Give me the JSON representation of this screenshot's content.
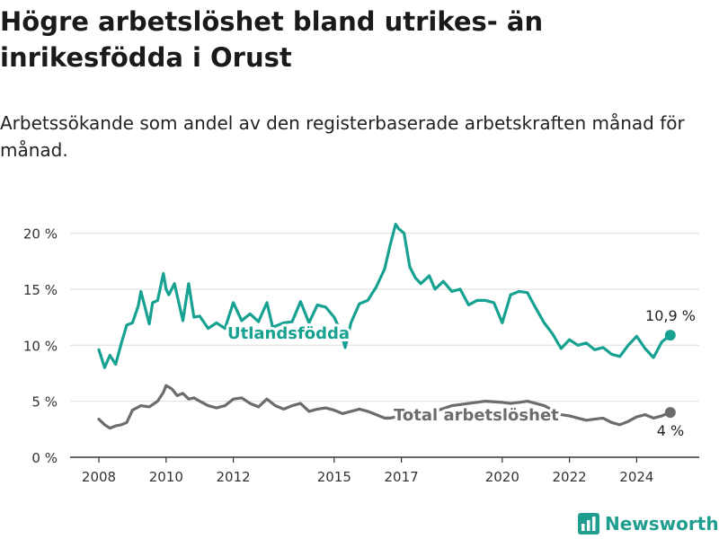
{
  "title": "Högre arbetslöshet bland utrikes- än inrikesfödda i Orust",
  "subtitle": "Arbetssökande som andel av den registerbaserade arbetskraften månad för månad.",
  "brand": "Newsworthy",
  "colors": {
    "utlandsfodda": "#16a190",
    "total": "#6c6c6c",
    "grid": "#dddddd",
    "axis": "#333333",
    "brand": "#1f9e8f"
  },
  "chart_data": {
    "type": "line",
    "y_ticks": [
      "0 %",
      "5 %",
      "10 %",
      "15 %",
      "20 %"
    ],
    "x_ticks": [
      "2008",
      "2010",
      "2012",
      "2015",
      "2017",
      "2020",
      "2022",
      "2024"
    ],
    "x_tick_values": [
      2008,
      2010,
      2012,
      2015,
      2017,
      2020,
      2022,
      2024
    ],
    "ylim": [
      0,
      21
    ],
    "grid": true,
    "series": [
      {
        "name": "Utlandsfödda",
        "end_label": "10,9 %",
        "x": [
          2008.0,
          2008.17,
          2008.33,
          2008.5,
          2008.67,
          2008.83,
          2009.0,
          2009.17,
          2009.25,
          2009.5,
          2009.6,
          2009.75,
          2009.92,
          2010.0,
          2010.08,
          2010.25,
          2010.5,
          2010.67,
          2010.83,
          2011.0,
          2011.25,
          2011.5,
          2011.75,
          2012.0,
          2012.25,
          2012.5,
          2012.75,
          2013.0,
          2013.17,
          2013.5,
          2013.75,
          2014.0,
          2014.25,
          2014.5,
          2014.75,
          2015.0,
          2015.17,
          2015.33,
          2015.5,
          2015.75,
          2016.0,
          2016.25,
          2016.5,
          2016.67,
          2016.83,
          2016.92,
          2017.08,
          2017.25,
          2017.42,
          2017.58,
          2017.83,
          2018.0,
          2018.25,
          2018.5,
          2018.75,
          2019.0,
          2019.25,
          2019.5,
          2019.75,
          2020.0,
          2020.25,
          2020.5,
          2020.75,
          2021.0,
          2021.25,
          2021.5,
          2021.75,
          2022.0,
          2022.25,
          2022.5,
          2022.75,
          2023.0,
          2023.25,
          2023.5,
          2023.75,
          2024.0,
          2024.25,
          2024.5,
          2024.75,
          2025.0
        ],
        "y": [
          9.6,
          8.0,
          9.1,
          8.3,
          10.2,
          11.8,
          12.0,
          13.5,
          14.8,
          11.9,
          13.8,
          14.0,
          16.4,
          15.0,
          14.5,
          15.5,
          12.2,
          15.5,
          12.5,
          12.6,
          11.5,
          12.0,
          11.5,
          13.8,
          12.2,
          12.8,
          12.1,
          13.8,
          11.6,
          12.0,
          12.1,
          13.9,
          12.0,
          13.6,
          13.4,
          12.5,
          11.4,
          9.8,
          12.0,
          13.7,
          14.0,
          15.2,
          16.8,
          19.0,
          20.8,
          20.4,
          20.0,
          17.0,
          16.0,
          15.5,
          16.2,
          15.0,
          15.7,
          14.8,
          15.0,
          13.6,
          14.0,
          14.0,
          13.8,
          12.0,
          14.5,
          14.8,
          14.7,
          13.3,
          12.0,
          11.0,
          9.7,
          10.5,
          10.0,
          10.2,
          9.6,
          9.8,
          9.2,
          9.0,
          10.0,
          10.8,
          9.7,
          8.9,
          10.3,
          10.9
        ]
      },
      {
        "name": "Total arbetslöshet",
        "end_label": "4 %",
        "x": [
          2008.0,
          2008.17,
          2008.33,
          2008.5,
          2008.67,
          2008.83,
          2009.0,
          2009.25,
          2009.5,
          2009.75,
          2009.92,
          2010.0,
          2010.17,
          2010.33,
          2010.5,
          2010.67,
          2010.83,
          2011.0,
          2011.25,
          2011.5,
          2011.75,
          2012.0,
          2012.25,
          2012.5,
          2012.75,
          2013.0,
          2013.25,
          2013.5,
          2013.75,
          2014.0,
          2014.25,
          2014.5,
          2014.75,
          2015.0,
          2015.25,
          2015.5,
          2015.75,
          2016.0,
          2016.25,
          2016.5,
          2016.67,
          2016.83,
          2017.0,
          2017.5,
          2018.0,
          2018.5,
          2019.0,
          2019.5,
          2020.0,
          2020.25,
          2020.5,
          2020.75,
          2021.0,
          2021.25,
          2021.5,
          2021.75,
          2022.0,
          2022.25,
          2022.5,
          2022.75,
          2023.0,
          2023.25,
          2023.5,
          2023.75,
          2024.0,
          2024.25,
          2024.5,
          2024.75,
          2025.0
        ],
        "y": [
          3.4,
          2.9,
          2.6,
          2.8,
          2.9,
          3.1,
          4.2,
          4.6,
          4.5,
          5.0,
          5.8,
          6.4,
          6.1,
          5.5,
          5.7,
          5.2,
          5.3,
          5.0,
          4.6,
          4.4,
          4.6,
          5.2,
          5.3,
          4.8,
          4.5,
          5.2,
          4.6,
          4.3,
          4.6,
          4.8,
          4.1,
          4.3,
          4.4,
          4.2,
          3.9,
          4.1,
          4.3,
          4.1,
          3.8,
          3.5,
          3.5,
          3.6,
          3.7,
          3.8,
          4.1,
          4.6,
          4.8,
          5.0,
          4.9,
          4.8,
          4.9,
          5.0,
          4.8,
          4.6,
          4.2,
          3.8,
          3.7,
          3.5,
          3.3,
          3.4,
          3.5,
          3.1,
          2.9,
          3.2,
          3.6,
          3.8,
          3.5,
          3.7,
          4.0
        ]
      }
    ]
  }
}
